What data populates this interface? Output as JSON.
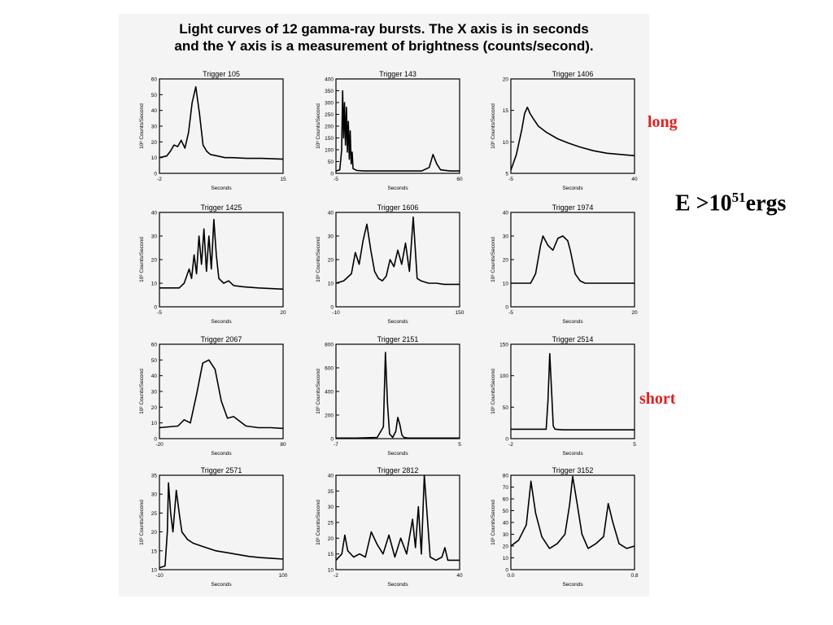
{
  "title_lines": [
    "Light curves of 12 gamma-ray bursts. The X axis is in seconds",
    "and the Y axis is a measurement of brightness (counts/second)."
  ],
  "side_labels": {
    "long": "long",
    "short": "short",
    "energy_prefix": "E >10",
    "energy_exponent": "51",
    "energy_suffix": "ergs"
  },
  "colors": {
    "curve": "#000000",
    "long_label": "#e02020",
    "short_label": "#e02020",
    "panel_bg": "#f4f4f4"
  },
  "chart_data": [
    {
      "type": "line",
      "title": "Trigger 105",
      "xlabel": "Seconds",
      "ylabel": "10³ Counts/Second",
      "xlim": [
        -2,
        15
      ],
      "ylim": [
        0,
        60
      ],
      "xticks": [
        "-2",
        "15"
      ],
      "yticks": [
        0,
        10,
        20,
        30,
        40,
        50,
        60
      ],
      "x": [
        -2,
        -1,
        -0.5,
        0,
        0.5,
        1,
        1.5,
        2,
        2.5,
        3,
        3.5,
        4,
        4.5,
        5,
        6,
        7,
        8,
        10,
        12,
        15
      ],
      "y": [
        10,
        11,
        14,
        18,
        17,
        21,
        16,
        26,
        45,
        55,
        38,
        18,
        14,
        12,
        11,
        10,
        10,
        9.5,
        9.5,
        9
      ]
    },
    {
      "type": "line",
      "title": "Trigger 143",
      "xlabel": "Seconds",
      "ylabel": "10³ Counts/Second",
      "xlim": [
        -5,
        60
      ],
      "ylim": [
        0,
        400
      ],
      "xticks": [
        "-5",
        "60"
      ],
      "yticks": [
        0,
        50,
        100,
        150,
        200,
        250,
        300,
        350,
        400
      ],
      "x": [
        -5,
        -3,
        -2,
        -1.5,
        -1,
        -0.5,
        0,
        0.5,
        1,
        1.5,
        2,
        2.5,
        3,
        3.5,
        4,
        6,
        10,
        20,
        40,
        44,
        46,
        48,
        50,
        55,
        60
      ],
      "y": [
        10,
        15,
        100,
        350,
        150,
        300,
        120,
        280,
        90,
        220,
        60,
        180,
        40,
        90,
        20,
        12,
        10,
        10,
        10,
        25,
        80,
        40,
        15,
        10,
        10
      ]
    },
    {
      "type": "line",
      "title": "Trigger 1406",
      "xlabel": "Seconds",
      "ylabel": "10³ Counts/Second",
      "xlim": [
        -5,
        40
      ],
      "ylim": [
        5,
        20
      ],
      "xticks": [
        "-5",
        "40"
      ],
      "yticks": [
        5,
        10,
        15,
        20
      ],
      "x": [
        -5,
        -3,
        -1,
        0,
        1,
        2,
        3,
        5,
        8,
        12,
        16,
        20,
        25,
        30,
        35,
        40
      ],
      "y": [
        5.5,
        8,
        12,
        14.5,
        15.5,
        14.5,
        13.8,
        12.5,
        11.5,
        10.5,
        9.8,
        9.2,
        8.6,
        8.2,
        8,
        7.8
      ]
    },
    {
      "type": "line",
      "title": "Trigger 1425",
      "xlabel": "Seconds",
      "ylabel": "10³ Counts/Second",
      "xlim": [
        -5,
        20
      ],
      "ylim": [
        0,
        40
      ],
      "xticks": [
        "-5",
        "20"
      ],
      "yticks": [
        0,
        10,
        20,
        30,
        40
      ],
      "x": [
        -5,
        -1,
        0,
        1,
        1.5,
        2,
        2.5,
        3,
        3.5,
        4,
        4.5,
        5,
        5.5,
        6,
        6.5,
        7,
        8,
        9,
        10,
        12,
        15,
        20
      ],
      "y": [
        8,
        8,
        10,
        16,
        12,
        22,
        14,
        30,
        18,
        33,
        15,
        30,
        16,
        37,
        22,
        12,
        10,
        11,
        9,
        8.5,
        8,
        7.5
      ]
    },
    {
      "type": "line",
      "title": "Trigger 1606",
      "xlabel": "Seconds",
      "ylabel": "10³ Counts/Second",
      "xlim": [
        -10,
        150
      ],
      "ylim": [
        0,
        40
      ],
      "xticks": [
        "-10",
        "150"
      ],
      "yticks": [
        0,
        10,
        20,
        30,
        40
      ],
      "x": [
        -10,
        0,
        10,
        15,
        20,
        25,
        30,
        35,
        40,
        45,
        50,
        55,
        60,
        65,
        70,
        75,
        80,
        85,
        90,
        95,
        100,
        110,
        120,
        130,
        150
      ],
      "y": [
        10,
        11,
        14,
        23,
        18,
        28,
        35,
        24,
        15,
        12,
        11,
        13,
        20,
        17,
        24,
        18,
        27,
        15,
        38,
        12,
        11,
        10,
        10,
        9.5,
        9.5
      ]
    },
    {
      "type": "line",
      "title": "Trigger 1974",
      "xlabel": "Seconds",
      "ylabel": "10³ Counts/Second",
      "xlim": [
        -5,
        20
      ],
      "ylim": [
        0,
        40
      ],
      "xticks": [
        "-5",
        "20"
      ],
      "yticks": [
        0,
        10,
        20,
        30,
        40
      ],
      "x": [
        -5,
        -1,
        0,
        1,
        1.5,
        2.5,
        3.5,
        4.5,
        5.5,
        6.5,
        7,
        8,
        9,
        10,
        12,
        15,
        20
      ],
      "y": [
        10,
        10,
        14,
        26,
        30,
        26,
        24,
        29,
        30,
        28,
        24,
        14,
        11,
        10,
        10,
        10,
        10
      ]
    },
    {
      "type": "line",
      "title": "Trigger 2067",
      "xlabel": "Seconds",
      "ylabel": "10³ Counts/Second",
      "xlim": [
        -20,
        80
      ],
      "ylim": [
        0,
        60
      ],
      "xticks": [
        "-20",
        "80"
      ],
      "yticks": [
        0,
        10,
        20,
        30,
        40,
        50,
        60
      ],
      "x": [
        -20,
        -5,
        0,
        5,
        10,
        15,
        20,
        25,
        30,
        35,
        40,
        45,
        50,
        60,
        70,
        80
      ],
      "y": [
        7,
        8,
        12,
        10,
        28,
        48,
        50,
        44,
        24,
        13,
        14,
        11,
        8,
        7,
        7,
        6.5
      ]
    },
    {
      "type": "line",
      "title": "Trigger 2151",
      "xlabel": "Seconds",
      "ylabel": "10³ Counts/Second",
      "xlim": [
        -7,
        5
      ],
      "ylim": [
        0,
        800
      ],
      "xticks": [
        "-7",
        "5"
      ],
      "yticks": [
        0,
        200,
        400,
        600,
        800
      ],
      "x": [
        -7,
        -5,
        -3,
        -2.4,
        -2.2,
        -2,
        -1.8,
        -1.5,
        -1.2,
        -1,
        -0.8,
        -0.6,
        -0.4,
        0,
        2,
        5
      ],
      "y": [
        5,
        5,
        10,
        100,
        730,
        300,
        40,
        10,
        60,
        180,
        120,
        30,
        10,
        5,
        5,
        5
      ]
    },
    {
      "type": "line",
      "title": "Trigger 2514",
      "xlabel": "Seconds",
      "ylabel": "10³ Counts/Second",
      "xlim": [
        -2,
        5
      ],
      "ylim": [
        0,
        150
      ],
      "xticks": [
        "-2",
        "5"
      ],
      "yticks": [
        0,
        50,
        100,
        150
      ],
      "x": [
        -2,
        -1,
        0,
        0.1,
        0.2,
        0.3,
        0.4,
        0.5,
        1,
        2,
        3,
        5
      ],
      "y": [
        15,
        15,
        15,
        60,
        135,
        80,
        20,
        15,
        14,
        14,
        14,
        14
      ]
    },
    {
      "type": "line",
      "title": "Trigger 2571",
      "xlabel": "Seconds",
      "ylabel": "10³ Counts/Second",
      "xlim": [
        -10,
        100
      ],
      "ylim": [
        10,
        35
      ],
      "xticks": [
        "-10",
        "100"
      ],
      "yticks": [
        10,
        15,
        20,
        25,
        30,
        35
      ],
      "x": [
        -10,
        -5,
        -3,
        -2,
        0,
        2,
        5,
        8,
        10,
        15,
        20,
        30,
        40,
        50,
        60,
        70,
        80,
        90,
        100
      ],
      "y": [
        10.5,
        11,
        20,
        33,
        25,
        20,
        31,
        24,
        20,
        18,
        17,
        16,
        15,
        14.5,
        14,
        13.5,
        13.2,
        13,
        12.8
      ]
    },
    {
      "type": "line",
      "title": "Trigger 2812",
      "xlabel": "Seconds",
      "ylabel": "10³ Counts/Second",
      "xlim": [
        -2,
        40
      ],
      "ylim": [
        10,
        40
      ],
      "xticks": [
        "-2",
        "40"
      ],
      "yticks": [
        10,
        15,
        20,
        25,
        30,
        35,
        40
      ],
      "x": [
        -2,
        0,
        1,
        2,
        4,
        6,
        8,
        10,
        12,
        14,
        16,
        18,
        20,
        22,
        24,
        25,
        26,
        27,
        28,
        30,
        32,
        34,
        35,
        36,
        38,
        40
      ],
      "y": [
        13,
        15,
        21,
        16,
        14,
        15,
        14,
        22,
        18,
        15,
        21,
        14,
        20,
        15,
        26,
        17,
        30,
        15,
        40,
        14,
        13,
        14,
        17,
        13,
        13,
        13
      ]
    },
    {
      "type": "line",
      "title": "Trigger 3152",
      "xlabel": "Seconds",
      "ylabel": "10³ Counts/Second",
      "xlim": [
        0,
        0.8
      ],
      "ylim": [
        0,
        80
      ],
      "xticks": [
        "0.0",
        "0.8"
      ],
      "yticks": [
        0,
        10,
        20,
        30,
        40,
        50,
        60,
        70,
        80
      ],
      "x": [
        0,
        0.05,
        0.1,
        0.13,
        0.16,
        0.2,
        0.25,
        0.3,
        0.35,
        0.38,
        0.4,
        0.43,
        0.46,
        0.5,
        0.55,
        0.6,
        0.63,
        0.66,
        0.7,
        0.75,
        0.8
      ],
      "y": [
        20,
        25,
        38,
        75,
        48,
        28,
        18,
        22,
        30,
        55,
        79,
        55,
        30,
        18,
        22,
        28,
        56,
        40,
        22,
        18,
        20
      ]
    }
  ]
}
